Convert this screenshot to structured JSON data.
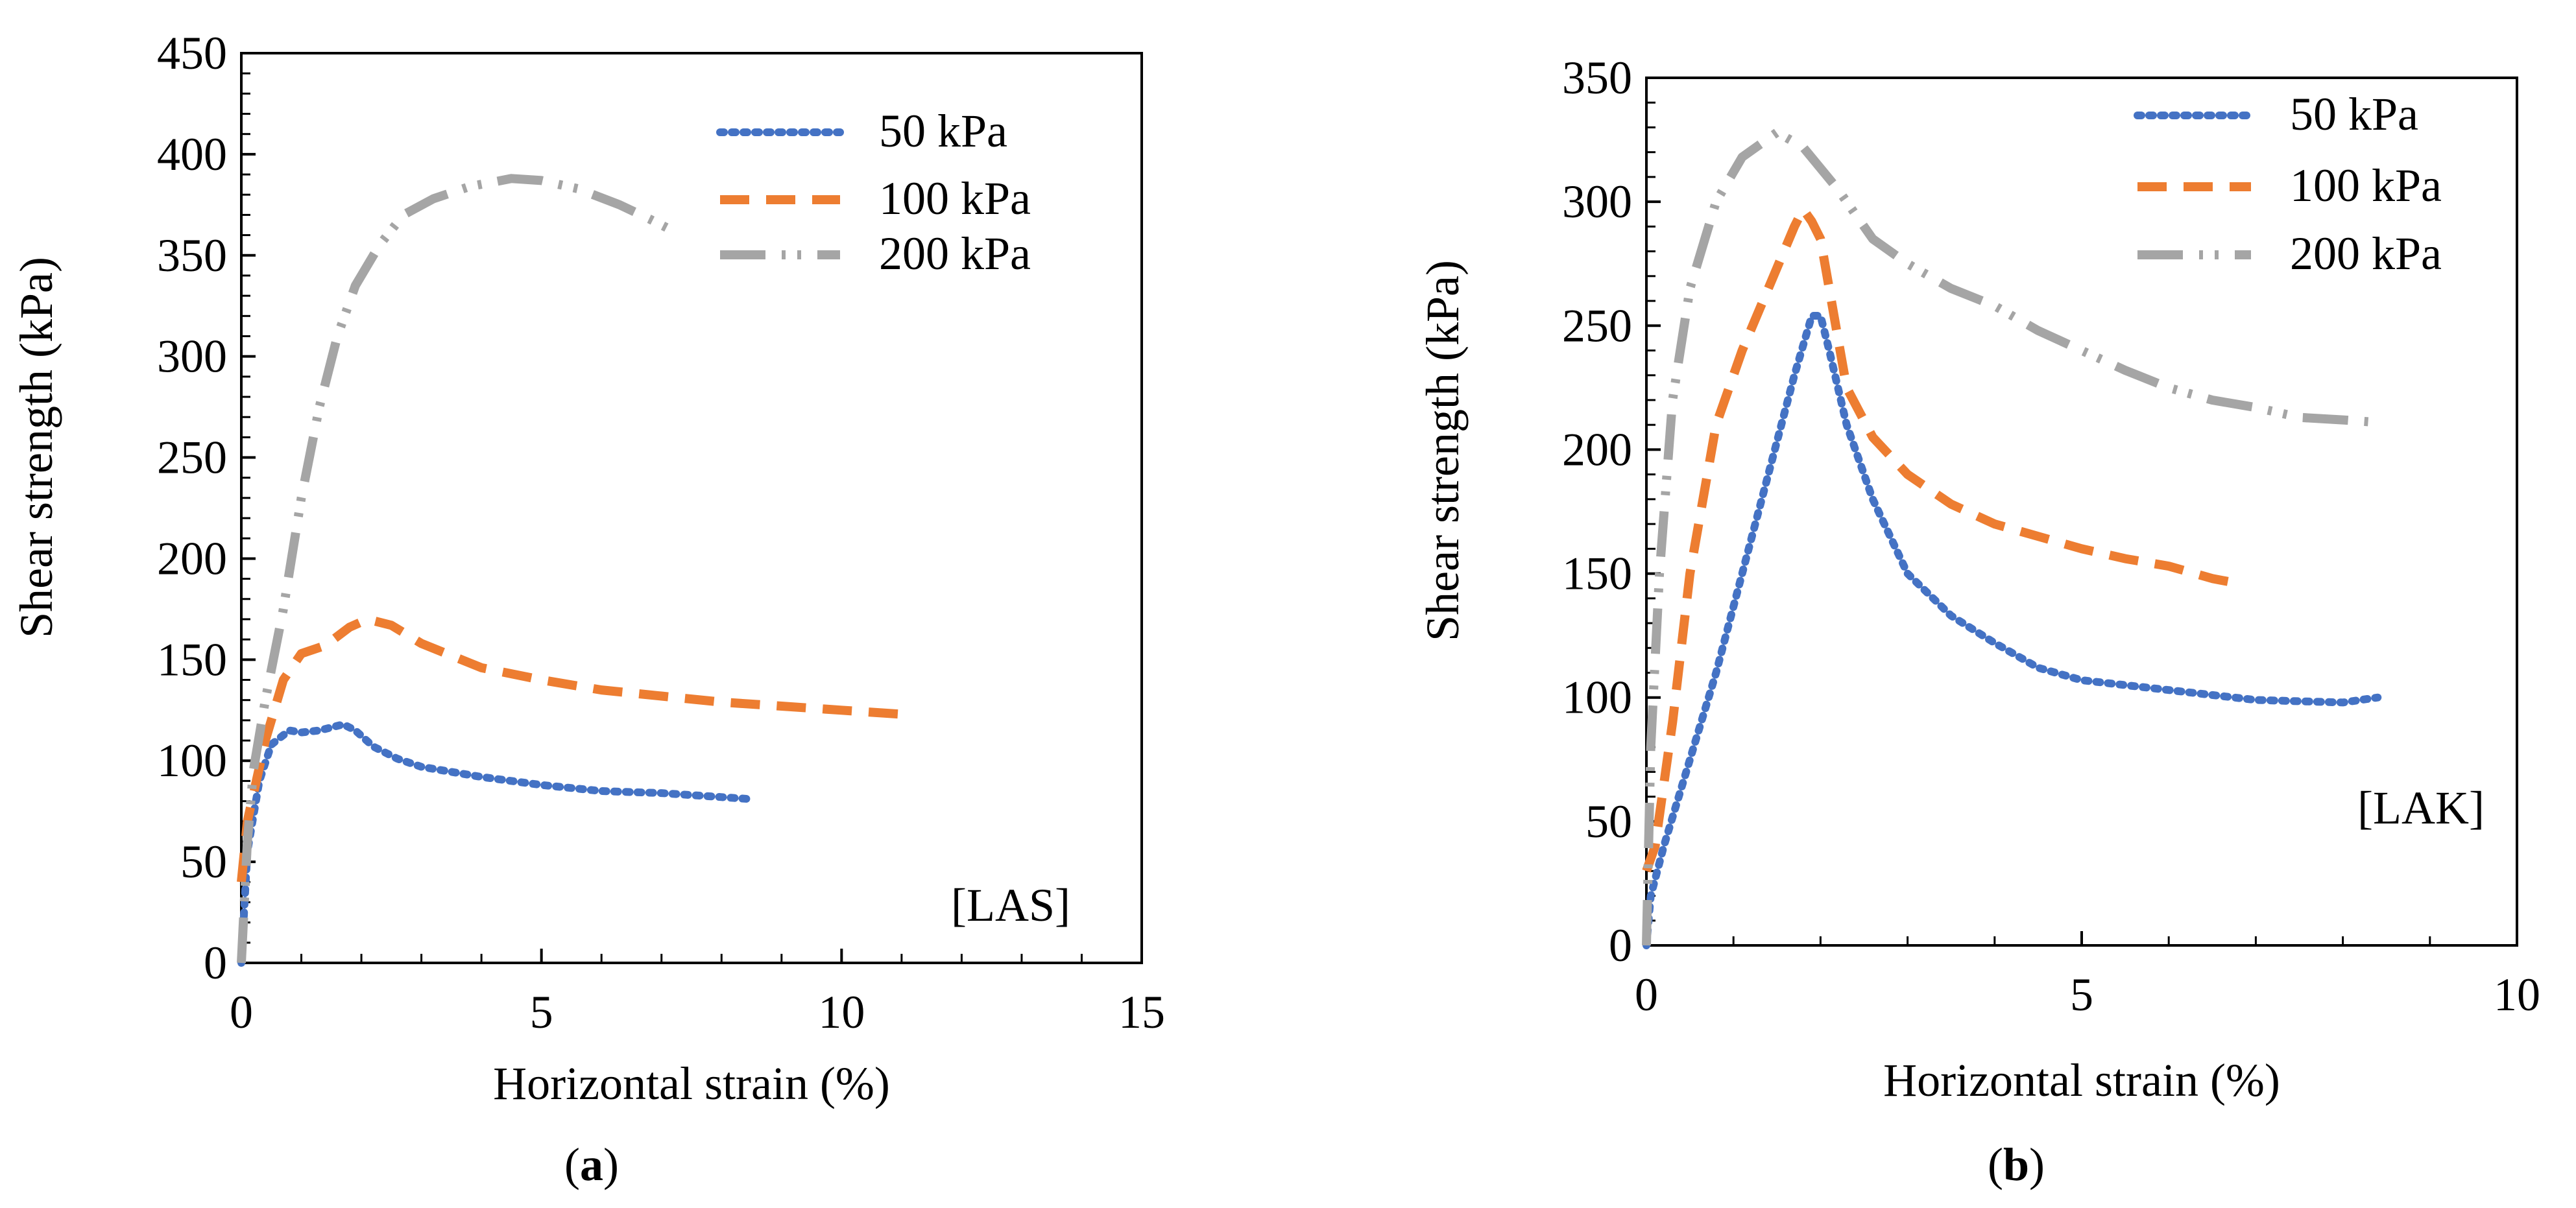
{
  "chart_data": [
    {
      "type": "line",
      "panel": "(a)",
      "caption_letter": "a",
      "tag": "[LAS]",
      "xlabel": "Horizontal  strain (%)",
      "ylabel": "Shear strength (kPa)",
      "xlim": [
        0,
        15
      ],
      "ylim": [
        0,
        450
      ],
      "xticks": [
        0,
        5,
        10,
        15
      ],
      "yticks": [
        0,
        50,
        100,
        150,
        200,
        250,
        300,
        350,
        400,
        450
      ],
      "legend": [
        "50 kPa",
        "100 kPa",
        "200 kPa"
      ],
      "series": [
        {
          "name": "50 kPa",
          "points": [
            [
              0,
              0
            ],
            [
              0.1,
              55
            ],
            [
              0.3,
              90
            ],
            [
              0.5,
              108
            ],
            [
              0.8,
              115
            ],
            [
              1.0,
              114
            ],
            [
              1.3,
              115
            ],
            [
              1.7,
              118
            ],
            [
              1.9,
              115
            ],
            [
              2.2,
              107
            ],
            [
              2.6,
              101
            ],
            [
              3.0,
              97
            ],
            [
              4.0,
              92
            ],
            [
              5.0,
              88
            ],
            [
              6.0,
              85
            ],
            [
              7.0,
              84
            ],
            [
              8.0,
              82
            ],
            [
              8.5,
              81
            ]
          ]
        },
        {
          "name": "100 kPa",
          "points": [
            [
              0,
              40
            ],
            [
              0.1,
              70
            ],
            [
              0.4,
              110
            ],
            [
              0.7,
              140
            ],
            [
              1.0,
              153
            ],
            [
              1.4,
              157
            ],
            [
              1.8,
              166
            ],
            [
              2.1,
              170
            ],
            [
              2.5,
              167
            ],
            [
              3.0,
              158
            ],
            [
              3.5,
              152
            ],
            [
              4.0,
              146
            ],
            [
              5.0,
              140
            ],
            [
              6.0,
              135
            ],
            [
              7.0,
              132
            ],
            [
              8.0,
              129
            ],
            [
              9.0,
              127
            ],
            [
              10.0,
              125
            ],
            [
              11.0,
              123
            ]
          ]
        },
        {
          "name": "200 kPa",
          "points": [
            [
              0,
              0
            ],
            [
              0.1,
              60
            ],
            [
              0.2,
              95
            ],
            [
              0.4,
              130
            ],
            [
              0.7,
              175
            ],
            [
              1.0,
              230
            ],
            [
              1.3,
              275
            ],
            [
              1.6,
              310
            ],
            [
              1.9,
              335
            ],
            [
              2.3,
              355
            ],
            [
              2.7,
              370
            ],
            [
              3.2,
              378
            ],
            [
              3.8,
              384
            ],
            [
              4.5,
              388
            ],
            [
              5.0,
              387
            ],
            [
              5.6,
              383
            ],
            [
              6.3,
              375
            ],
            [
              6.8,
              368
            ],
            [
              7.2,
              362
            ]
          ]
        }
      ]
    },
    {
      "type": "line",
      "panel": "(b)",
      "caption_letter": "b",
      "tag": "[LAK]",
      "xlabel": "Horizontal  strain (%)",
      "ylabel": "Shear strength (kPa)",
      "xlim": [
        0,
        10
      ],
      "ylim": [
        0,
        350
      ],
      "xticks": [
        0,
        5,
        10
      ],
      "yticks": [
        0,
        50,
        100,
        150,
        200,
        250,
        300,
        350
      ],
      "legend": [
        "50 kPa",
        "100 kPa",
        "200 kPa"
      ],
      "series": [
        {
          "name": "50 kPa",
          "points": [
            [
              0,
              0
            ],
            [
              0.05,
              20
            ],
            [
              0.2,
              40
            ],
            [
              0.5,
              75
            ],
            [
              0.8,
              110
            ],
            [
              1.1,
              150
            ],
            [
              1.4,
              190
            ],
            [
              1.7,
              230
            ],
            [
              1.9,
              254
            ],
            [
              2.0,
              254
            ],
            [
              2.1,
              240
            ],
            [
              2.3,
              210
            ],
            [
              2.6,
              180
            ],
            [
              3.0,
              150
            ],
            [
              3.5,
              133
            ],
            [
              4.0,
              122
            ],
            [
              4.5,
              112
            ],
            [
              5.0,
              107
            ],
            [
              6.0,
              103
            ],
            [
              7.0,
              99
            ],
            [
              8.0,
              98
            ],
            [
              8.4,
              100
            ]
          ]
        },
        {
          "name": "100 kPa",
          "points": [
            [
              0,
              30
            ],
            [
              0.1,
              40
            ],
            [
              0.3,
              90
            ],
            [
              0.5,
              150
            ],
            [
              0.8,
              210
            ],
            [
              1.1,
              240
            ],
            [
              1.4,
              265
            ],
            [
              1.7,
              290
            ],
            [
              1.8,
              297
            ],
            [
              1.9,
              292
            ],
            [
              2.0,
              285
            ],
            [
              2.1,
              265
            ],
            [
              2.3,
              225
            ],
            [
              2.6,
              205
            ],
            [
              3.0,
              190
            ],
            [
              3.5,
              178
            ],
            [
              4.0,
              170
            ],
            [
              4.5,
              165
            ],
            [
              5.0,
              160
            ],
            [
              5.5,
              156
            ],
            [
              6.0,
              153
            ],
            [
              6.5,
              148
            ],
            [
              6.8,
              146
            ]
          ]
        },
        {
          "name": "200 kPa",
          "points": [
            [
              0,
              0
            ],
            [
              0.05,
              80
            ],
            [
              0.15,
              150
            ],
            [
              0.3,
              220
            ],
            [
              0.5,
              265
            ],
            [
              0.8,
              300
            ],
            [
              1.1,
              318
            ],
            [
              1.5,
              328
            ],
            [
              1.8,
              322
            ],
            [
              2.2,
              305
            ],
            [
              2.6,
              285
            ],
            [
              3.0,
              275
            ],
            [
              3.5,
              265
            ],
            [
              4.0,
              258
            ],
            [
              4.5,
              248
            ],
            [
              5.0,
              240
            ],
            [
              5.5,
              232
            ],
            [
              6.0,
              225
            ],
            [
              6.5,
              220
            ],
            [
              7.0,
              217
            ],
            [
              7.5,
              213
            ],
            [
              8.0,
              212
            ],
            [
              8.4,
              211
            ]
          ]
        }
      ]
    }
  ],
  "colors": {
    "series": [
      "#4472C4",
      "#ED7D31",
      "#A5A5A5"
    ],
    "axis": "#000000"
  }
}
